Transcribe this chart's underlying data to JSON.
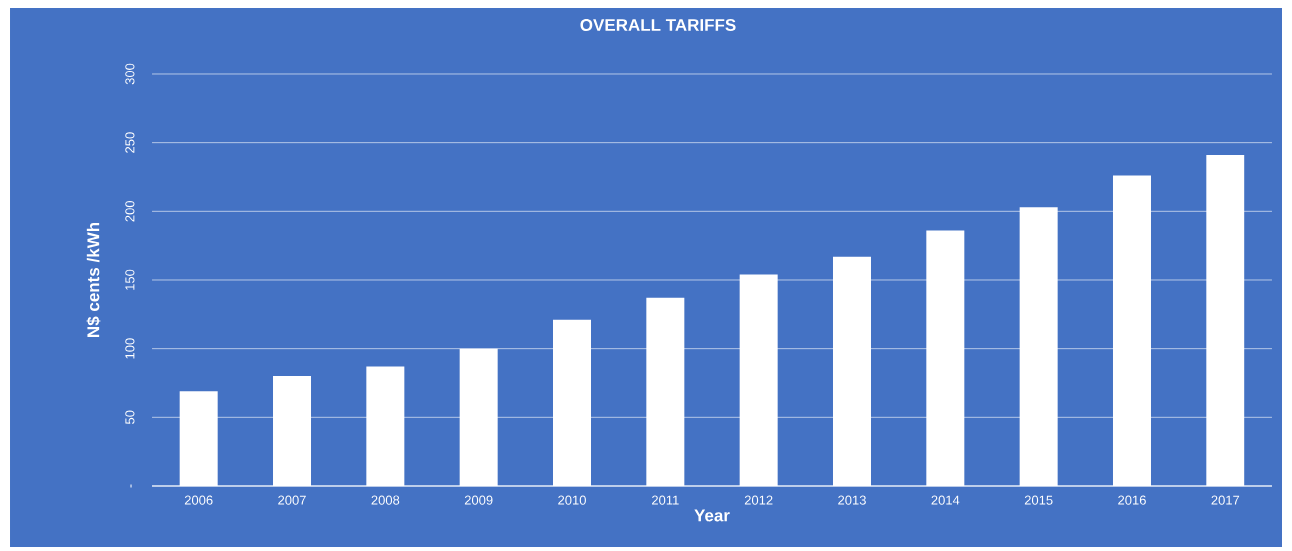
{
  "chart_data": {
    "type": "bar",
    "title": "OVERALL TARIFFS",
    "xlabel": "Year",
    "ylabel": "N$ cents /kWh",
    "categories": [
      "2006",
      "2007",
      "2008",
      "2009",
      "2010",
      "2011",
      "2012",
      "2013",
      "2014",
      "2015",
      "2016",
      "2017"
    ],
    "values": [
      69,
      80,
      87,
      100,
      121,
      137,
      154,
      167,
      186,
      203,
      226,
      241
    ],
    "color": "#ffffff",
    "ylim": [
      0,
      300
    ],
    "yticks": [
      {
        "value": 0,
        "label": "-"
      },
      50,
      100,
      150,
      200,
      250,
      300
    ],
    "grid": "y"
  }
}
